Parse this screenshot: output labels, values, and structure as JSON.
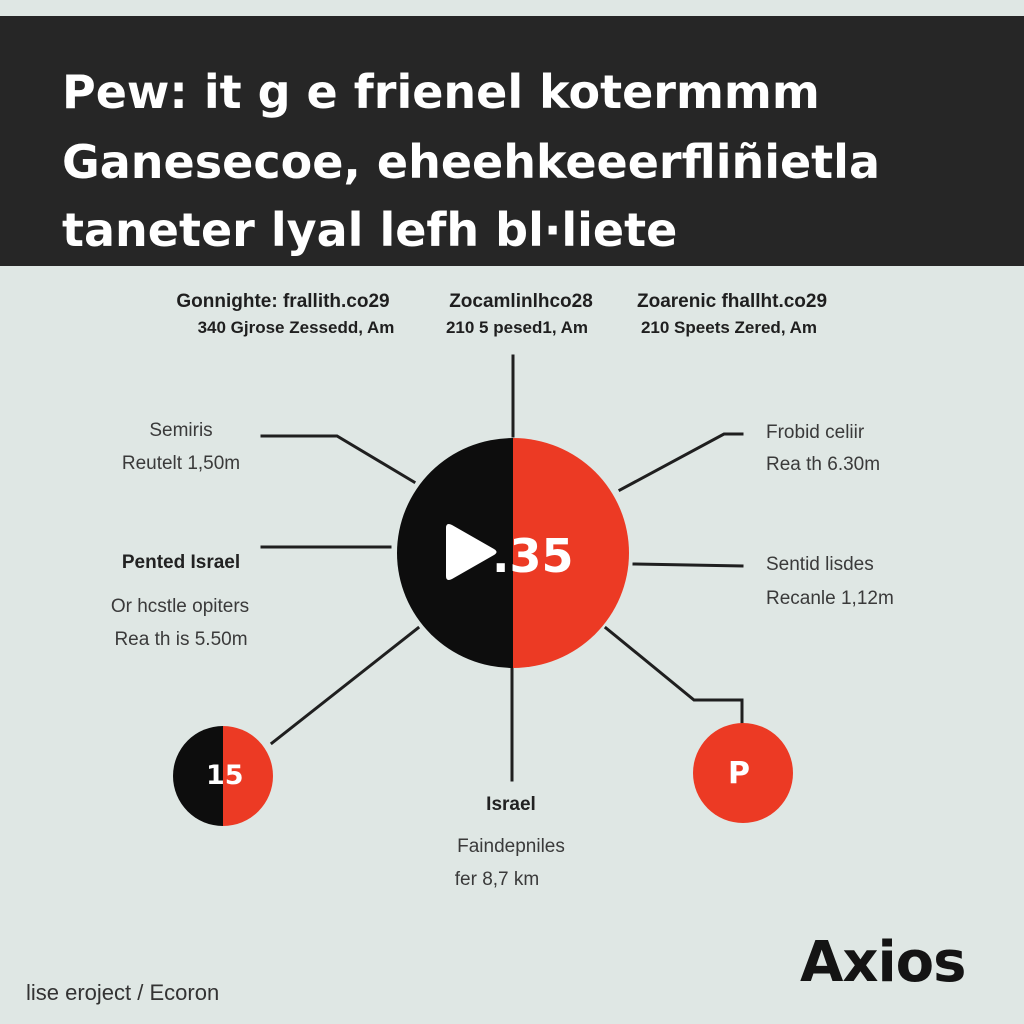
{
  "header": {
    "lines": [
      "Pew: it g e frienel kotermmm",
      "Ganesecoe, eheehkeeerfliñietla",
      "taneter lyal lefh bl·liete"
    ]
  },
  "top_labels": [
    {
      "title": "Gonnighte: frallith.co29",
      "sub": "340 Gjrose Zessedd, Am"
    },
    {
      "title": "Zocamlinlhco28",
      "sub": "210 5 pesed1, Am"
    },
    {
      "title": "Zoarenic fhallht.co29",
      "sub": "210 Speets Zered, Am"
    }
  ],
  "left_labels": {
    "a_title": "Semiris",
    "a_sub": "Reutelt 1,50m",
    "b_title": "Pented Israel",
    "b_line1": "Or hcstle opiters",
    "b_line2": "Rea th is 5.50m"
  },
  "right_labels": {
    "a_title": "Frobid celiir",
    "a_sub": "Rea th 6.30m",
    "b_title": "Sentid lisdes",
    "b_sub": "Recanle 1,12m"
  },
  "bottom_labels": {
    "title": "Israel",
    "line1": "Faindepniles",
    "line2": "fer 8,7 km"
  },
  "hub": {
    "play_icon": "play-icon",
    "value": ".35"
  },
  "left_node": {
    "value": "15"
  },
  "right_node": {
    "value": "P"
  },
  "brand": "Axios",
  "footer": "lise eroject / Ecoron",
  "colors": {
    "red": "#ec3a24",
    "black": "#0d0d0d",
    "header": "#262626",
    "background": "#dfe7e4"
  }
}
